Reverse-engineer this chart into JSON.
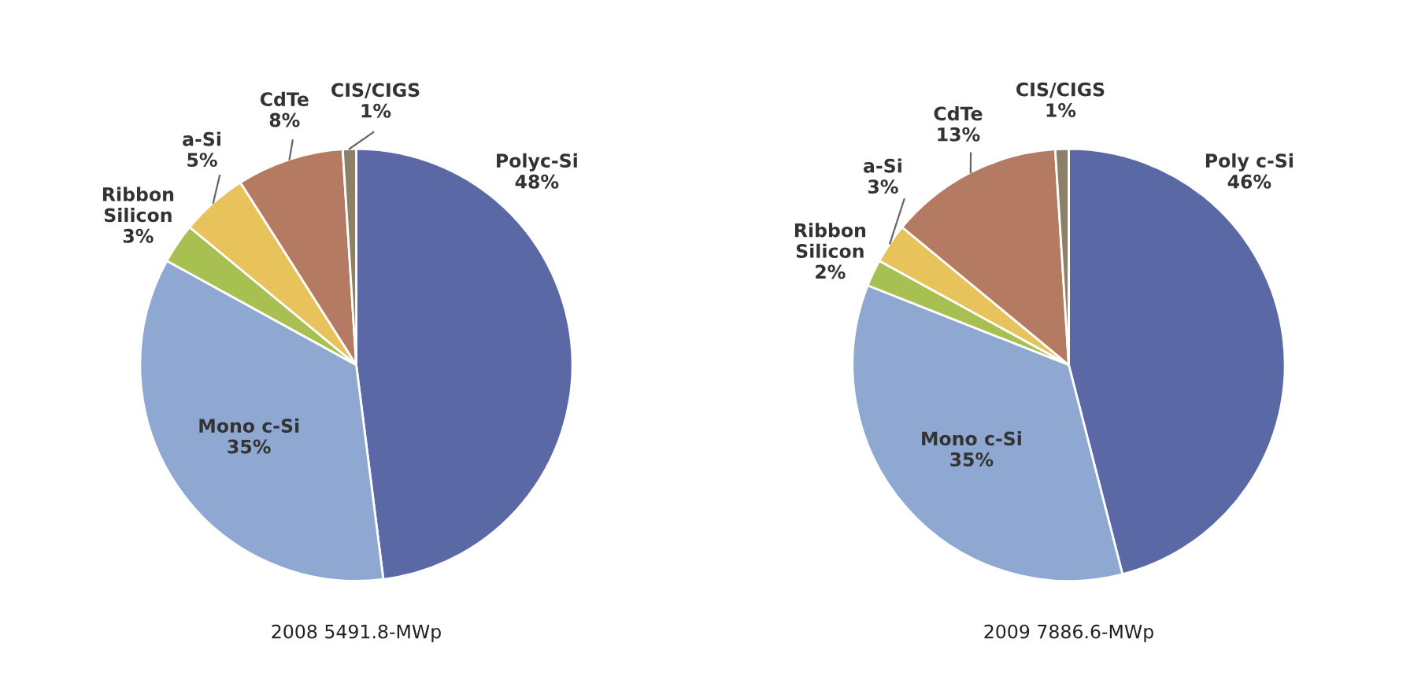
{
  "chart_data": [
    {
      "type": "pie",
      "title": "2008 5491.8-MWp",
      "categories": [
        "Polyc-Si",
        "Mono c-Si",
        "Ribbon\nSilicon",
        "a-Si",
        "CdTe",
        "CIS/CIGS"
      ],
      "values": [
        48,
        35,
        3,
        5,
        8,
        1
      ],
      "value_labels": [
        "48%",
        "35%",
        "3%",
        "5%",
        "8%",
        "1%"
      ],
      "colors": [
        "#5a68a6",
        "#8ea8d2",
        "#a7c051",
        "#e8c35c",
        "#b47b62",
        "#8c8168"
      ]
    },
    {
      "type": "pie",
      "title": "2009 7886.6-MWp",
      "categories": [
        "Poly c-Si",
        "Mono c-Si",
        "Ribbon\nSilicon",
        "a-Si",
        "CdTe",
        "CIS/CIGS"
      ],
      "values": [
        46,
        35,
        2,
        3,
        13,
        1
      ],
      "value_labels": [
        "46%",
        "35%",
        "2%",
        "3%",
        "13%",
        "1%"
      ],
      "colors": [
        "#5a68a6",
        "#8ea8d2",
        "#a7c051",
        "#e8c35c",
        "#b47b62",
        "#8c8168"
      ]
    }
  ]
}
